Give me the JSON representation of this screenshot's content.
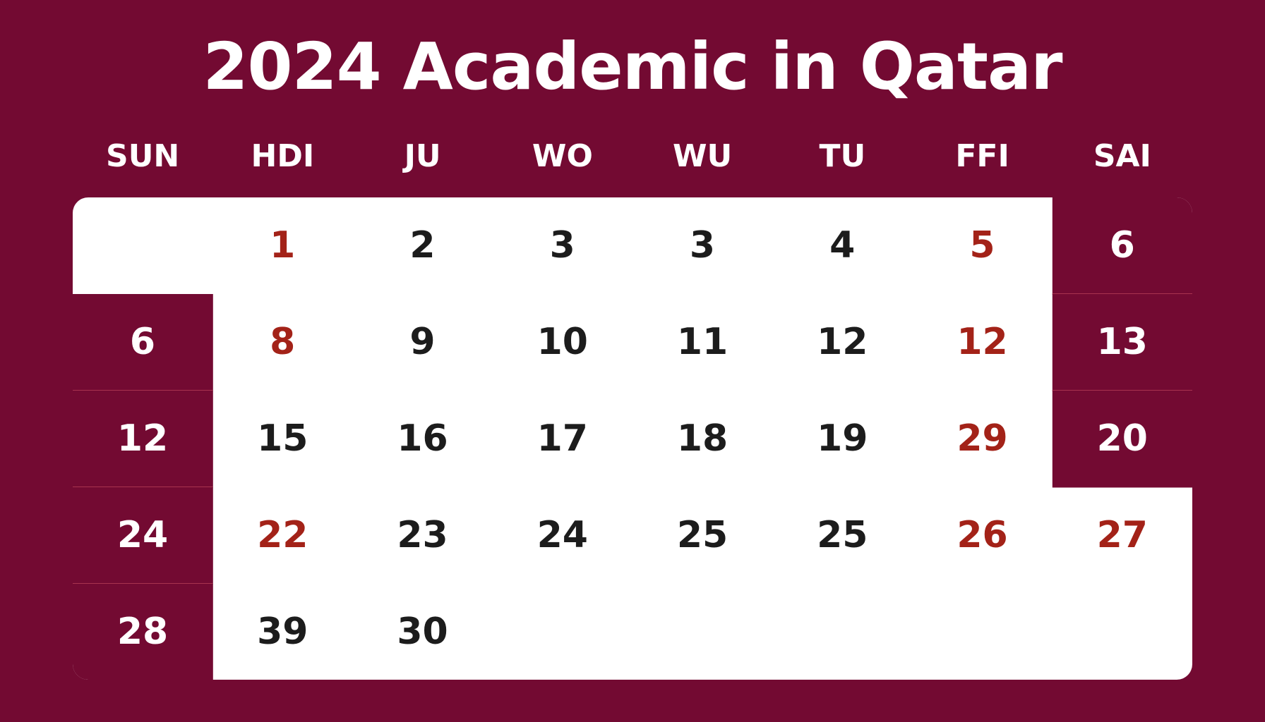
{
  "title": "2024 Academic in Qatar",
  "colors": {
    "background": "#730a32",
    "sheet": "#ffffff",
    "accent_red": "#a32218",
    "text_dark": "#1c1c1c",
    "on_maroon": "#ffffff"
  },
  "day_names": [
    "SUN",
    "HDI",
    "JU",
    "WO",
    "WU",
    "TU",
    "FFI",
    "SAI"
  ],
  "weeks": [
    [
      null,
      "1",
      "2",
      "3",
      "3",
      "4",
      "5",
      "6"
    ],
    [
      "6",
      "8",
      "9",
      "10",
      "11",
      "12",
      "12",
      "13"
    ],
    [
      "12",
      "15",
      "16",
      "17",
      "18",
      "19",
      "29",
      "20"
    ],
    [
      "24",
      "22",
      "23",
      "24",
      "25",
      "25",
      "26",
      "27"
    ],
    [
      "28",
      "39",
      "30",
      null,
      null,
      null,
      null,
      null
    ]
  ],
  "cell_styles": [
    [
      "empty",
      "red",
      "dark",
      "dark",
      "dark",
      "dark",
      "red",
      "maroon"
    ],
    [
      "maroon",
      "red",
      "dark",
      "dark",
      "dark",
      "dark",
      "red",
      "maroon"
    ],
    [
      "maroon",
      "dark",
      "dark",
      "dark",
      "dark",
      "dark",
      "red",
      "maroon"
    ],
    [
      "maroon",
      "red",
      "dark",
      "dark",
      "dark",
      "dark",
      "red",
      "red"
    ],
    [
      "maroon",
      "dark",
      "dark",
      "empty",
      "empty",
      "empty",
      "empty",
      "empty"
    ]
  ]
}
